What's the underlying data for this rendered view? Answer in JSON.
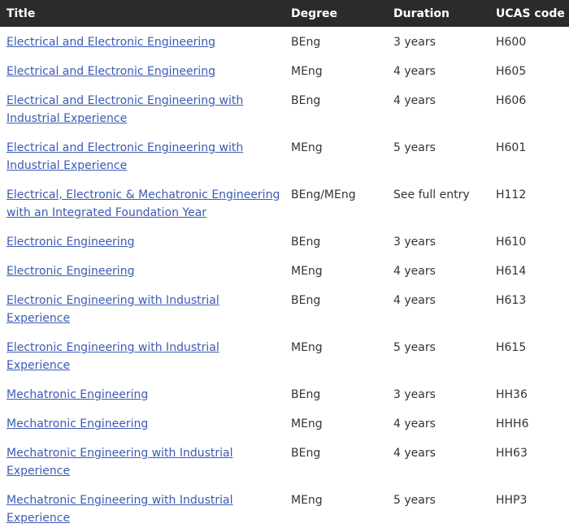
{
  "table": {
    "headers": {
      "title": "Title",
      "degree": "Degree",
      "duration": "Duration",
      "ucas": "UCAS code"
    },
    "rows": [
      {
        "title": "Electrical and Electronic Engineering",
        "degree": "BEng",
        "duration": "3 years",
        "ucas": "H600"
      },
      {
        "title": "Electrical and Electronic Engineering",
        "degree": "MEng",
        "duration": "4 years",
        "ucas": "H605"
      },
      {
        "title": "Electrical and Electronic Engineering with Industrial Experience",
        "degree": "BEng",
        "duration": "4 years",
        "ucas": "H606"
      },
      {
        "title": "Electrical and Electronic Engineering with Industrial Experience",
        "degree": "MEng",
        "duration": "5 years",
        "ucas": "H601"
      },
      {
        "title": "Electrical, Electronic & Mechatronic Engineering with an Integrated Foundation Year",
        "degree": "BEng/MEng",
        "duration": "See full entry",
        "ucas": "H112"
      },
      {
        "title": "Electronic Engineering",
        "degree": "BEng",
        "duration": "3 years",
        "ucas": "H610"
      },
      {
        "title": "Electronic Engineering",
        "degree": "MEng",
        "duration": "4 years",
        "ucas": "H614"
      },
      {
        "title": "Electronic Engineering with Industrial Experience",
        "degree": "BEng",
        "duration": "4 years",
        "ucas": "H613"
      },
      {
        "title": "Electronic Engineering with Industrial Experience",
        "degree": "MEng",
        "duration": "5 years",
        "ucas": "H615"
      },
      {
        "title": "Mechatronic Engineering",
        "degree": "BEng",
        "duration": "3 years",
        "ucas": "HH36"
      },
      {
        "title": "Mechatronic Engineering",
        "degree": "MEng",
        "duration": "4 years",
        "ucas": "HHH6"
      },
      {
        "title": "Mechatronic Engineering with Industrial Experience",
        "degree": "BEng",
        "duration": "4 years",
        "ucas": "HH63"
      },
      {
        "title": "Mechatronic Engineering with Industrial Experience",
        "degree": "MEng",
        "duration": "5 years",
        "ucas": "HHP3"
      }
    ]
  },
  "colors": {
    "header_bg": "#2b2b2b",
    "header_text": "#ffffff",
    "link": "#3c5ab4",
    "body_text": "#333333"
  }
}
